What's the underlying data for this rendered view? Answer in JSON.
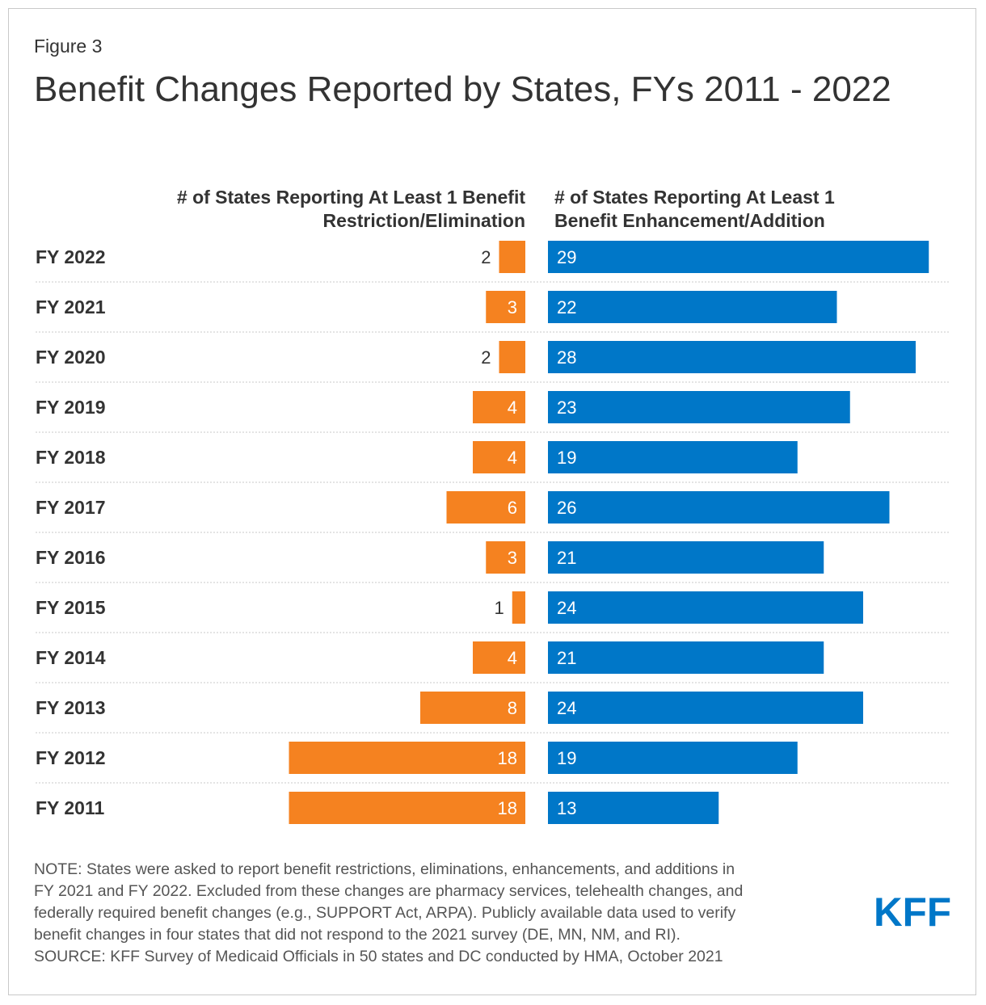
{
  "figure_label": "Figure 3",
  "title": "Benefit Changes Reported by States, FYs 2011 - 2022",
  "note_lines": [
    "NOTE: States were asked to report benefit restrictions, eliminations, enhancements, and additions in",
    "FY 2021 and FY 2022. Excluded from these changes are pharmacy services, telehealth changes, and",
    "federally required benefit changes (e.g., SUPPORT Act, ARPA). Publicly available data used to verify",
    "benefit changes in four states that did not respond to the 2021 survey (DE, MN, NM, and RI).",
    "SOURCE: KFF Survey of Medicaid Officials in 50 states and DC conducted by HMA, October 2021"
  ],
  "logo_text": "KFF",
  "colors": {
    "restriction": "#f58220",
    "enhancement": "#0077c8",
    "text": "#333333",
    "logo": "#0077c8"
  },
  "chart_data": {
    "type": "bar",
    "title": "Benefit Changes Reported by States, FYs 2011 - 2022",
    "categories": [
      "FY 2022",
      "FY 2021",
      "FY 2020",
      "FY 2019",
      "FY 2018",
      "FY 2017",
      "FY 2016",
      "FY 2015",
      "FY 2014",
      "FY 2013",
      "FY 2012",
      "FY 2011"
    ],
    "series": [
      {
        "name": "# of States Reporting At Least 1 Benefit Restriction/Elimination",
        "header_lines": [
          "# of States Reporting At Least 1 Benefit",
          "Restriction/Elimination"
        ],
        "values": [
          2,
          3,
          2,
          4,
          4,
          6,
          3,
          1,
          4,
          8,
          18,
          18
        ]
      },
      {
        "name": "# of States Reporting At Least 1 Benefit Enhancement/Addition",
        "header_lines": [
          "# of States Reporting At Least 1",
          "Benefit Enhancement/Addition"
        ],
        "values": [
          29,
          22,
          28,
          23,
          19,
          26,
          21,
          24,
          21,
          24,
          19,
          13
        ]
      }
    ],
    "orientation": "horizontal-diverging",
    "grid": false
  }
}
